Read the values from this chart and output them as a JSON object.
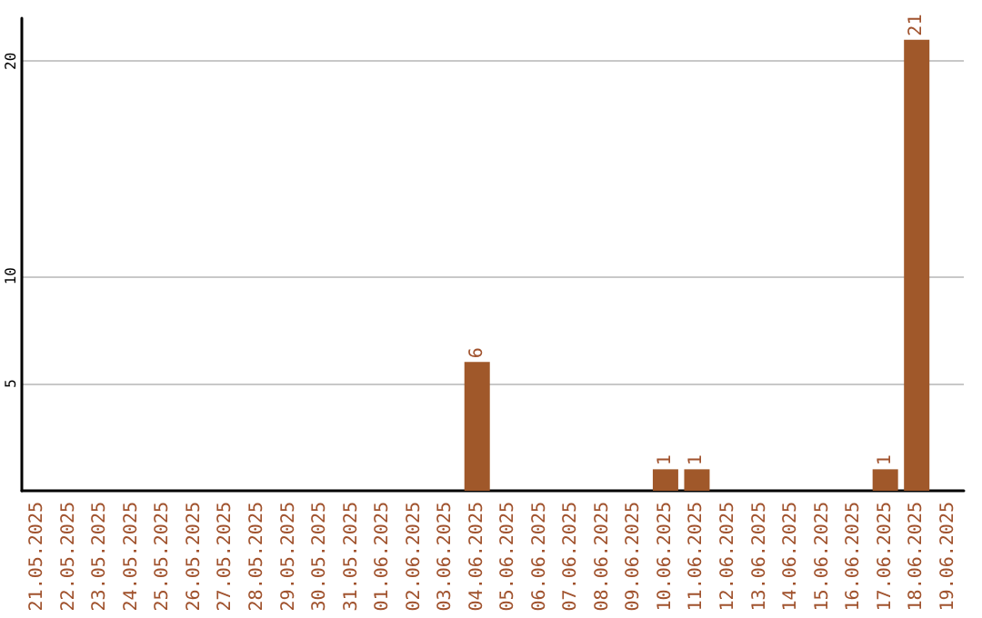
{
  "chart_data": {
    "type": "bar",
    "categories": [
      "21.05.2025",
      "22.05.2025",
      "23.05.2025",
      "24.05.2025",
      "25.05.2025",
      "26.05.2025",
      "27.05.2025",
      "28.05.2025",
      "29.05.2025",
      "30.05.2025",
      "31.05.2025",
      "01.06.2025",
      "02.06.2025",
      "03.06.2025",
      "04.06.2025",
      "05.06.2025",
      "06.06.2025",
      "07.06.2025",
      "08.06.2025",
      "09.06.2025",
      "10.06.2025",
      "11.06.2025",
      "12.06.2025",
      "13.06.2025",
      "14.06.2025",
      "15.06.2025",
      "16.06.2025",
      "17.06.2025",
      "18.06.2025",
      "19.06.2025"
    ],
    "values": [
      0,
      0,
      0,
      0,
      0,
      0,
      0,
      0,
      0,
      0,
      0,
      0,
      0,
      0,
      6,
      0,
      0,
      0,
      0,
      0,
      1,
      1,
      0,
      0,
      0,
      0,
      0,
      1,
      21,
      0
    ],
    "value_labels": [
      null,
      null,
      null,
      null,
      null,
      null,
      null,
      null,
      null,
      null,
      null,
      null,
      null,
      null,
      "6",
      null,
      null,
      null,
      null,
      null,
      "1",
      "1",
      null,
      null,
      null,
      null,
      null,
      "1",
      "21",
      null
    ],
    "color": "#a0582a",
    "ylim": [
      0,
      22
    ],
    "yticks": [
      5,
      10,
      20
    ],
    "grid": "y"
  }
}
